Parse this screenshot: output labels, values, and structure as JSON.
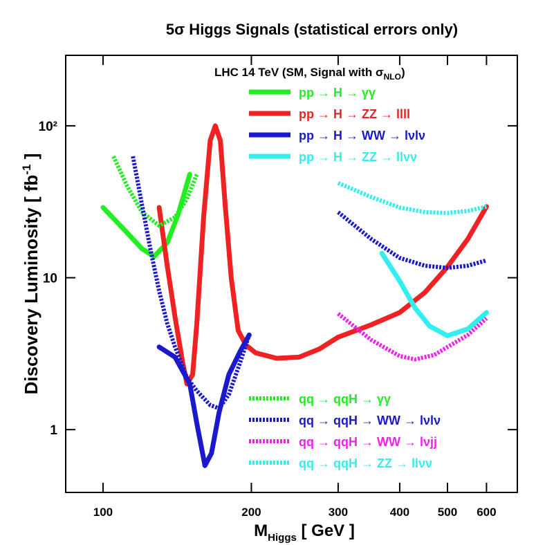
{
  "chart_data": {
    "type": "line",
    "title": "5σ Higgs Signals (statistical errors only)",
    "annotation": [
      "LHC 14 TeV (SM, Signal with σ",
      "NLO",
      ")"
    ],
    "x_label": [
      "M",
      "Higgs",
      " [ GeV ]"
    ],
    "y_label": [
      "Discovery Luminosity [ fb",
      "-1",
      " ]"
    ],
    "xscale": "log",
    "yscale": "log",
    "xlim": [
      84,
      693
    ],
    "ylim": [
      0.386,
      291
    ],
    "xticks": [
      100,
      200,
      300,
      400,
      500,
      600
    ],
    "yticks": [
      1,
      10,
      {
        "value": 100,
        "label": "10²"
      }
    ],
    "series": [
      {
        "name": "pp → H →  γγ",
        "color": "#22ee22",
        "dashed": false,
        "x": [
          100,
          110,
          120,
          127,
          135,
          142,
          150
        ],
        "values": [
          29,
          21,
          15.5,
          13.8,
          17,
          26,
          48
        ]
      },
      {
        "name": "pp → H →  ZZ → llll",
        "color": "#ee2222",
        "dashed": false,
        "x": [
          130,
          135,
          140,
          145,
          148,
          152,
          155,
          160,
          165,
          169,
          173,
          177,
          182,
          188,
          195,
          204,
          225,
          250,
          275,
          300,
          350,
          400,
          450,
          500,
          550,
          600
        ],
        "values": [
          29,
          12,
          5.5,
          2.8,
          2.0,
          2.3,
          5,
          25,
          80,
          100,
          80,
          30,
          10,
          4.5,
          3.6,
          3.2,
          2.95,
          3.0,
          3.4,
          4.06,
          4.9,
          5.9,
          8,
          11.8,
          18,
          29.4
        ]
      },
      {
        "name": "pp → H →  WW → lνlν",
        "color": "#1a1acc",
        "dashed": false,
        "x": [
          130,
          140,
          150,
          155,
          161,
          166,
          172,
          180,
          190,
          198
        ],
        "values": [
          3.5,
          3.0,
          2.0,
          1.1,
          0.58,
          0.7,
          1.3,
          2.3,
          3.3,
          4.2
        ]
      },
      {
        "name": "pp → H →  ZZ → llνν",
        "color": "#33eeee",
        "dashed": false,
        "x": [
          368,
          400,
          430,
          460,
          500,
          550,
          600
        ],
        "values": [
          14.5,
          9.5,
          6.3,
          4.8,
          4.15,
          4.6,
          5.9
        ]
      },
      {
        "name": "qq → qqH →  γγ",
        "color": "#22ee22",
        "dashed": true,
        "x": [
          105,
          112,
          120,
          130,
          140,
          148,
          155
        ],
        "values": [
          63,
          40,
          27,
          22,
          25,
          33,
          48
        ]
      },
      {
        "name": "qq → qqH →  WW → lνlν",
        "color": "#1a1acc",
        "dashed": true,
        "x": [
          115,
          120,
          125,
          130,
          135,
          140,
          148,
          155,
          165,
          172,
          180,
          190,
          198,
          250,
          300,
          350,
          400,
          450,
          500,
          550,
          600
        ],
        "values": [
          63,
          30,
          15,
          8.2,
          5,
          3.5,
          2.2,
          1.8,
          1.45,
          1.38,
          1.7,
          2.8,
          4.2,
          null,
          27,
          18,
          13.5,
          12,
          11.6,
          12,
          13
        ]
      },
      {
        "name": "qq → qqH → WW → lνjj",
        "color": "#ee22ee",
        "dashed": true,
        "x": [
          300,
          350,
          400,
          430,
          470,
          500,
          550,
          600
        ],
        "values": [
          5.8,
          3.9,
          3.05,
          2.9,
          3.1,
          3.5,
          4.2,
          5.4
        ]
      },
      {
        "name": "qq → qqH → ZZ → llνν",
        "color": "#33eeee",
        "dashed": true,
        "x": [
          300,
          350,
          400,
          450,
          500,
          550,
          600
        ],
        "values": [
          42,
          34,
          29,
          27,
          26.7,
          27.5,
          29.4
        ]
      }
    ]
  }
}
